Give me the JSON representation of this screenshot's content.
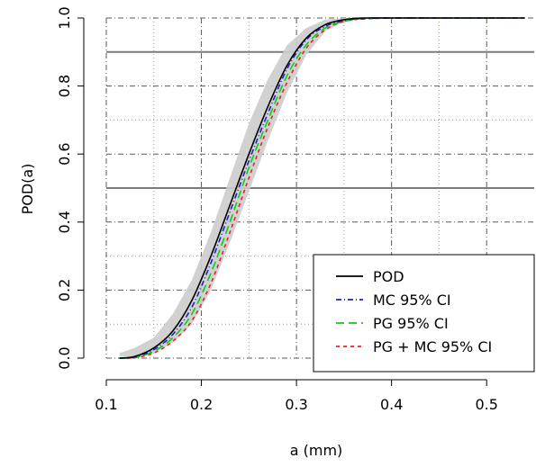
{
  "chart_data": {
    "type": "line",
    "xlabel": "a (mm)",
    "ylabel": "POD(a)",
    "xlim": [
      0.1,
      0.55
    ],
    "ylim": [
      0.0,
      1.0
    ],
    "x_ticks": [
      0.1,
      0.2,
      0.3,
      0.4,
      0.5
    ],
    "x_tick_labels": [
      "0.1",
      "0.2",
      "0.3",
      "0.4",
      "0.5"
    ],
    "y_ticks": [
      0.0,
      0.2,
      0.4,
      0.6,
      0.8,
      1.0
    ],
    "y_tick_labels": [
      "0.0",
      "0.2",
      "0.4",
      "0.6",
      "0.8",
      "1.0"
    ],
    "grid": true,
    "reference_lines_y": [
      0.5,
      0.9
    ],
    "legend_position": "bottom-right",
    "x": [
      0.114,
      0.13,
      0.15,
      0.17,
      0.19,
      0.21,
      0.23,
      0.25,
      0.27,
      0.29,
      0.31,
      0.33,
      0.35,
      0.37,
      0.4,
      0.45,
      0.5,
      0.54
    ],
    "series": [
      {
        "name": "POD",
        "color": "#000000",
        "dash": "solid",
        "values": [
          0.0,
          0.005,
          0.03,
          0.08,
          0.17,
          0.3,
          0.45,
          0.6,
          0.74,
          0.86,
          0.94,
          0.98,
          0.995,
          1.0,
          1.0,
          1.0,
          1.0,
          1.0
        ]
      },
      {
        "name": "MC 95% CI",
        "color": "#1f1fd1",
        "dash": "dashdot",
        "values": [
          0.0,
          0.003,
          0.025,
          0.07,
          0.15,
          0.28,
          0.43,
          0.58,
          0.72,
          0.85,
          0.935,
          0.975,
          0.993,
          0.998,
          1.0,
          1.0,
          1.0,
          1.0
        ]
      },
      {
        "name": "PG 95% CI",
        "color": "#00d800",
        "dash": "dashed",
        "values": [
          0.0,
          0.002,
          0.02,
          0.06,
          0.13,
          0.25,
          0.4,
          0.56,
          0.7,
          0.83,
          0.92,
          0.97,
          0.99,
          0.998,
          1.0,
          1.0,
          1.0,
          1.0
        ]
      },
      {
        "name": "PG + MC 95% CI",
        "color": "#ee2020",
        "dash": "dotted",
        "values": [
          0.0,
          0.001,
          0.015,
          0.05,
          0.11,
          0.22,
          0.37,
          0.53,
          0.68,
          0.81,
          0.91,
          0.965,
          0.99,
          0.997,
          1.0,
          1.0,
          1.0,
          1.0
        ]
      }
    ],
    "ci_band": {
      "color": "#cccccc",
      "lower": [
        0.005,
        0.002,
        0.015,
        0.045,
        0.1,
        0.2,
        0.34,
        0.49,
        0.64,
        0.78,
        0.89,
        0.96,
        0.99,
        0.997,
        1.0,
        1.0,
        1.0,
        1.0
      ],
      "upper": [
        0.015,
        0.03,
        0.06,
        0.13,
        0.23,
        0.37,
        0.53,
        0.69,
        0.82,
        0.92,
        0.97,
        0.995,
        1.0,
        1.0,
        1.0,
        1.0,
        1.0,
        1.0
      ]
    }
  }
}
